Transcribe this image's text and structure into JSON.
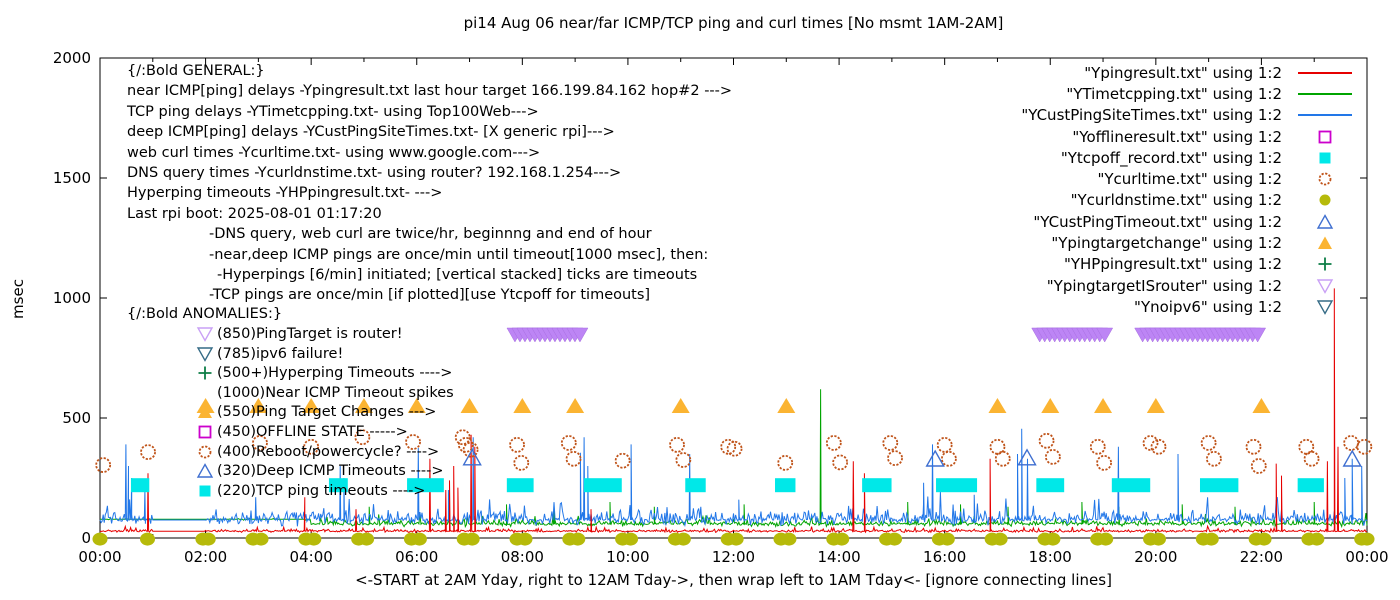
{
  "chart_data": {
    "type": "line",
    "title": "pi14 Aug 06  near/far ICMP/TCP ping and curl times [No msmt 1AM-2AM]",
    "xlabel": "<-START at 2AM Yday, right to 12AM Tday->, then wrap left to 1AM Tday<- [ignore connecting lines]",
    "ylabel": "msec",
    "ylim": [
      0,
      2000
    ],
    "xlim_hours": [
      0,
      24
    ],
    "y_ticks": [
      0,
      500,
      1000,
      1500,
      2000
    ],
    "x_tick_labels": [
      "00:00",
      "02:00",
      "04:00",
      "06:00",
      "08:00",
      "10:00",
      "12:00",
      "14:00",
      "16:00",
      "18:00",
      "20:00",
      "22:00",
      "00:00"
    ],
    "x_minor_tick_every_hours": 1,
    "grid": false,
    "no_measurement_gap_hours": [
      1,
      2
    ],
    "series": {
      "Ypingresult": {
        "style": "line",
        "color": "#e60000",
        "baseline_msec": 28,
        "noise_msec": 8,
        "spikes": [
          [
            0.91,
            270
          ],
          [
            3.88,
            170
          ],
          [
            4.85,
            120
          ],
          [
            6.25,
            330
          ],
          [
            6.55,
            200
          ],
          [
            6.62,
            240
          ],
          [
            6.7,
            300
          ],
          [
            6.78,
            210
          ],
          [
            7.03,
            430
          ],
          [
            7.1,
            380
          ],
          [
            9.3,
            120
          ],
          [
            14.27,
            320
          ],
          [
            14.48,
            270
          ],
          [
            16.86,
            330
          ],
          [
            22.28,
            310
          ],
          [
            22.38,
            260
          ],
          [
            23.25,
            320
          ],
          [
            23.38,
            1040
          ],
          [
            23.45,
            380
          ]
        ]
      },
      "YTimetcpping": {
        "style": "line",
        "color": "#00a400",
        "baseline_msec": 58,
        "noise_msec": 16,
        "flat_until_hour": 4,
        "flat_value_msec": 78,
        "spikes": [
          [
            5.1,
            130
          ],
          [
            7.7,
            140
          ],
          [
            8.6,
            130
          ],
          [
            9.66,
            150
          ],
          [
            10.5,
            130
          ],
          [
            12.2,
            140
          ],
          [
            13.65,
            620
          ],
          [
            15.3,
            150
          ],
          [
            16.3,
            140
          ],
          [
            17.2,
            130
          ],
          [
            18.6,
            150
          ],
          [
            19.3,
            130
          ],
          [
            20.5,
            140
          ],
          [
            21.5,
            130
          ],
          [
            23.0,
            150
          ]
        ]
      },
      "YCustPingSiteTimes": {
        "style": "line",
        "color": "#2277e8",
        "baseline_msec": 75,
        "noise_msec": 38,
        "spikes": [
          [
            0.49,
            390
          ],
          [
            0.54,
            300
          ],
          [
            0.6,
            250
          ],
          [
            0.85,
            200
          ],
          [
            2.95,
            170
          ],
          [
            4.55,
            300
          ],
          [
            4.62,
            250
          ],
          [
            6.03,
            375
          ],
          [
            6.6,
            200
          ],
          [
            7.07,
            420
          ],
          [
            9.1,
            355
          ],
          [
            9.17,
            420
          ],
          [
            9.24,
            300
          ],
          [
            10.06,
            390
          ],
          [
            11.17,
            350
          ],
          [
            12.1,
            160
          ],
          [
            15.6,
            230
          ],
          [
            15.77,
            390
          ],
          [
            16.56,
            180
          ],
          [
            17.38,
            350
          ],
          [
            17.46,
            455
          ],
          [
            17.57,
            330
          ],
          [
            19.29,
            380
          ],
          [
            20.42,
            350
          ],
          [
            23.58,
            250
          ],
          [
            23.72,
            330
          ],
          [
            23.9,
            300
          ]
        ]
      },
      "Yofflineresult": {
        "style": "open-square",
        "color": "#cc00cc",
        "points": []
      },
      "Ytcpoff_record": {
        "style": "filled-square",
        "color": "#00e8e8",
        "value_msec": 220,
        "segments_hours": [
          [
            0.7,
            0.82
          ],
          [
            4.45,
            4.58
          ],
          [
            5.93,
            6.4
          ],
          [
            7.82,
            8.1
          ],
          [
            9.28,
            9.77
          ],
          [
            11.2,
            11.36
          ],
          [
            12.9,
            13.06
          ],
          [
            14.55,
            14.88
          ],
          [
            15.95,
            16.5
          ],
          [
            17.85,
            18.15
          ],
          [
            19.28,
            19.78
          ],
          [
            20.95,
            21.45
          ],
          [
            22.8,
            23.07
          ]
        ]
      },
      "Ycurltime": {
        "style": "open-circle",
        "color": "#c0541a",
        "points": [
          [
            0.06,
            304
          ],
          [
            0.91,
            358
          ],
          [
            3.03,
            396
          ],
          [
            4.0,
            380
          ],
          [
            4.97,
            420
          ],
          [
            5.93,
            400
          ],
          [
            6.87,
            420
          ],
          [
            6.93,
            388
          ],
          [
            7.02,
            368
          ],
          [
            7.9,
            388
          ],
          [
            7.98,
            313
          ],
          [
            8.88,
            396
          ],
          [
            8.97,
            330
          ],
          [
            9.9,
            322
          ],
          [
            10.93,
            388
          ],
          [
            11.05,
            325
          ],
          [
            11.9,
            380
          ],
          [
            12.02,
            372
          ],
          [
            12.98,
            313
          ],
          [
            13.9,
            396
          ],
          [
            14.02,
            315
          ],
          [
            14.97,
            396
          ],
          [
            15.06,
            333
          ],
          [
            16.0,
            388
          ],
          [
            16.08,
            330
          ],
          [
            17.0,
            380
          ],
          [
            17.1,
            330
          ],
          [
            17.93,
            405
          ],
          [
            18.05,
            338
          ],
          [
            18.9,
            380
          ],
          [
            19.02,
            313
          ],
          [
            19.9,
            396
          ],
          [
            20.05,
            380
          ],
          [
            21.0,
            396
          ],
          [
            21.1,
            330
          ],
          [
            21.85,
            380
          ],
          [
            21.95,
            300
          ],
          [
            22.85,
            380
          ],
          [
            22.95,
            330
          ],
          [
            23.7,
            396
          ],
          [
            23.95,
            380
          ]
        ]
      },
      "Ycurldnstime": {
        "style": "filled-circle",
        "color": "#b6ba0a",
        "value_msec": 8,
        "hours": [
          0,
          0.9,
          1.95,
          2.05,
          2.9,
          3.05,
          3.9,
          4.05,
          4.9,
          5.05,
          5.9,
          6.05,
          6.9,
          7.05,
          7.9,
          8.05,
          8.9,
          9.05,
          9.9,
          10.05,
          10.9,
          11.05,
          11.9,
          12.05,
          12.9,
          13.05,
          13.9,
          14.05,
          14.9,
          15.05,
          15.9,
          16.05,
          16.9,
          17.05,
          17.9,
          18.05,
          18.9,
          19.05,
          19.9,
          20.05,
          20.9,
          21.05,
          21.9,
          22.05,
          22.9,
          23.05,
          23.9,
          24
        ]
      },
      "YCustPingTimeout": {
        "style": "open-triangle-up",
        "color": "#3f6fd0",
        "points": [
          [
            7.05,
            330
          ],
          [
            15.82,
            325
          ],
          [
            17.56,
            330
          ],
          [
            23.72,
            325
          ]
        ]
      },
      "Ypingtargetchange": {
        "style": "filled-triangle-up",
        "color": "#fbb432",
        "value_msec": 550,
        "hours": [
          2,
          3,
          4,
          5,
          6,
          7,
          8,
          9,
          11,
          13,
          17,
          18,
          19,
          20,
          22
        ]
      },
      "YHPpingresult": {
        "style": "plus",
        "color": "#0c7d46",
        "points": []
      },
      "YpingtargetISrouter": {
        "style": "filled-triangle-down-band",
        "color": "#bd85f5",
        "stroke": "#a76fe0",
        "value_msec": 850,
        "bands_hours": [
          [
            7.86,
            9.12
          ],
          [
            17.8,
            19.06
          ],
          [
            19.75,
            22.02
          ]
        ]
      },
      "Ynoipv6": {
        "style": "open-triangle-down",
        "color": "#356b86",
        "points": []
      }
    }
  },
  "legend": {
    "items": [
      {
        "label": "\"Ypingresult.txt\" using 1:2",
        "marker": "line",
        "color": "#e60000"
      },
      {
        "label": "\"YTimetcpping.txt\" using 1:2",
        "marker": "line",
        "color": "#00a400"
      },
      {
        "label": "\"YCustPingSiteTimes.txt\" using 1:2",
        "marker": "line",
        "color": "#2277e8"
      },
      {
        "label": "\"Yofflineresult.txt\" using 1:2",
        "marker": "open-square",
        "color": "#cc00cc"
      },
      {
        "label": "\"Ytcpoff_record.txt\" using 1:2",
        "marker": "filled-square",
        "color": "#00e8e8"
      },
      {
        "label": "\"Ycurltime.txt\" using 1:2",
        "marker": "open-circle",
        "color": "#c0541a"
      },
      {
        "label": "\"Ycurldnstime.txt\" using 1:2",
        "marker": "filled-circle",
        "color": "#b6ba0a"
      },
      {
        "label": "\"YCustPingTimeout.txt\" using 1:2",
        "marker": "open-triangle-up",
        "color": "#3f6fd0"
      },
      {
        "label": "\"Ypingtargetchange\" using 1:2",
        "marker": "filled-triangle-up",
        "color": "#fbb432"
      },
      {
        "label": "\"YHPpingresult.txt\" using 1:2",
        "marker": "plus",
        "color": "#0c7d46"
      },
      {
        "label": "\"YpingtargetISrouter\" using 1:2",
        "marker": "open-triangle-down",
        "color": "#c9a0f5"
      },
      {
        "label": "\"Ynoipv6\" using 1:2",
        "marker": "open-triangle-down",
        "color": "#356b86"
      }
    ]
  },
  "annotations": {
    "general": [
      {
        "text": "{/:Bold GENERAL:}",
        "indent": 0
      },
      {
        "text": "near ICMP[ping] delays -Ypingresult.txt last hour target 166.199.84.162 hop#2 --->",
        "indent": 0
      },
      {
        "text": "TCP ping delays -YTimetcpping.txt- using Top100Web--->",
        "indent": 0
      },
      {
        "text": "deep ICMP[ping] delays -YCustPingSiteTimes.txt- [X generic rpi]--->",
        "indent": 0
      },
      {
        "text": "web curl times -Ycurltime.txt- using www.google.com--->",
        "indent": 0
      },
      {
        "text": "DNS query times -Ycurldnstime.txt- using router? 192.168.1.254--->",
        "indent": 0
      },
      {
        "text": "Hyperping timeouts -YHPpingresult.txt- --->",
        "indent": 0
      },
      {
        "text": "Last rpi boot: 2025-08-01 01:17:20",
        "indent": 0
      },
      {
        "text": "-DNS query, web curl are twice/hr, beginnng and end of hour",
        "indent": 1
      },
      {
        "text": "-near,deep ICMP pings are once/min until timeout[1000 msec], then:",
        "indent": 1
      },
      {
        "text": "-Hyperpings [6/min] initiated; [vertical stacked] ticks are timeouts",
        "indent": 2
      },
      {
        "text": "-TCP pings are once/min [if plotted][use Ytcpoff for timeouts]",
        "indent": 1
      }
    ],
    "anomalies_header": "{/:Bold ANOMALIES:}",
    "anomalies": [
      {
        "marker": "open-triangle-down",
        "color": "#c9a0f5",
        "label": "(850)PingTarget is router!"
      },
      {
        "marker": "open-triangle-down",
        "color": "#356b86",
        "label": "(785)ipv6 failure!"
      },
      {
        "marker": "plus",
        "color": "#0c7d46",
        "label": "(500+)Hyperping Timeouts ---->"
      },
      {
        "marker": "none",
        "color": "",
        "label": "(1000)Near ICMP Timeout spikes"
      },
      {
        "marker": "filled-triangle-up",
        "color": "#fbb432",
        "label": "(550)Ping Target Changes --->"
      },
      {
        "marker": "open-square",
        "color": "#cc00cc",
        "label": "(450)OFFLINE STATE ----->"
      },
      {
        "marker": "open-circle",
        "color": "#c0541a",
        "label": "(400)Reboot/powercycle? ---->"
      },
      {
        "marker": "open-triangle-up",
        "color": "#3f6fd0",
        "label": "(320)Deep ICMP Timeouts ---->"
      },
      {
        "marker": "filled-square",
        "color": "#00e8e8",
        "label": "(220)TCP ping timeouts ---->"
      }
    ]
  }
}
